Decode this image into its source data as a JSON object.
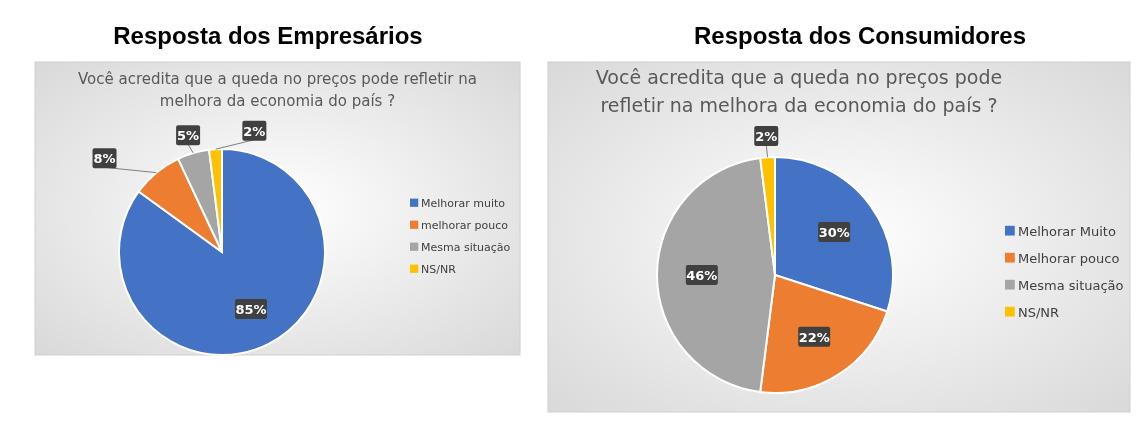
{
  "chart_data": [
    {
      "type": "pie",
      "title": "Resposta dos Empresários",
      "subtitle": "Você acredita que a queda no preços pode refletir na melhora da economia do país ?",
      "categories": [
        "Melhorar muito",
        "melhorar pouco",
        "Mesma situação",
        "NS/NR"
      ],
      "values": [
        85,
        8,
        5,
        2
      ],
      "colors": [
        "#4472c4",
        "#ed7d31",
        "#a5a5a5",
        "#ffc000"
      ],
      "value_labels": [
        "85%",
        "8%",
        "5%",
        "2%"
      ],
      "legend": "right"
    },
    {
      "type": "pie",
      "title": "Resposta dos Consumidores",
      "subtitle": "Você acredita que a queda no preços pode refletir na melhora da economia do país ?",
      "categories": [
        "Melhorar Muito",
        "Melhorar pouco",
        "Mesma situação",
        "NS/NR"
      ],
      "values": [
        30,
        22,
        46,
        2
      ],
      "colors": [
        "#4472c4",
        "#ed7d31",
        "#a5a5a5",
        "#ffc000"
      ],
      "value_labels": [
        "30%",
        "22%",
        "46%",
        "2%"
      ],
      "legend": "right"
    }
  ]
}
